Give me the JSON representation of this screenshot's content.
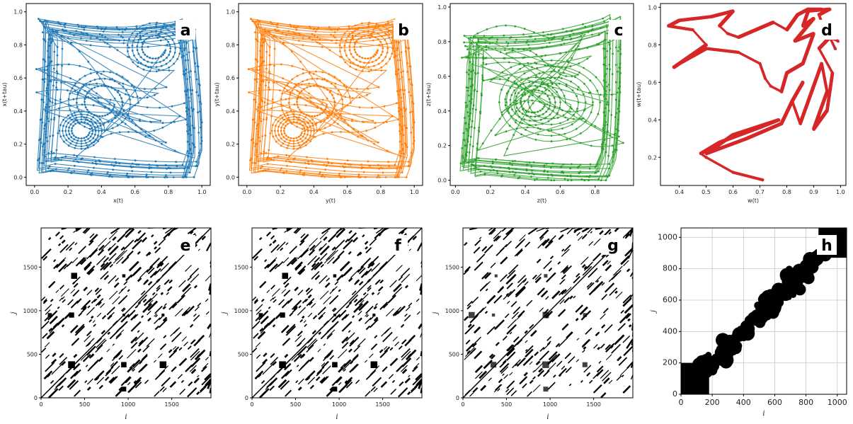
{
  "chart_data": [
    {
      "panel": "a",
      "type": "scatter",
      "color": "#1f77b4",
      "xlabel": "x(t)",
      "ylabel": "x(t+tau)",
      "xlim": [
        -0.05,
        1.05
      ],
      "ylim": [
        -0.05,
        1.05
      ],
      "xticks": [
        "0.0",
        "0.2",
        "0.4",
        "0.6",
        "0.8",
        "1.0"
      ],
      "yticks": [
        "0.0",
        "0.2",
        "0.4",
        "0.6",
        "0.8",
        "1.0"
      ]
    },
    {
      "panel": "b",
      "type": "scatter",
      "color": "#ff7f0e",
      "xlabel": "y(t)",
      "ylabel": "y(t+tau)",
      "xlim": [
        -0.05,
        1.05
      ],
      "ylim": [
        -0.05,
        1.05
      ],
      "xticks": [
        "0.0",
        "0.2",
        "0.4",
        "0.6",
        "0.8",
        "1.0"
      ],
      "yticks": [
        "0.0",
        "0.2",
        "0.4",
        "0.6",
        "0.8",
        "1.0"
      ]
    },
    {
      "panel": "c",
      "type": "scatter",
      "color": "#2ca02c",
      "xlabel": "z(t)",
      "ylabel": "z(t+tau)",
      "xlim": [
        -0.03,
        1.02
      ],
      "ylim": [
        -0.03,
        1.02
      ],
      "xticks": [
        "0.0",
        "0.2",
        "0.4",
        "0.6",
        "0.8"
      ],
      "yticks": [
        "0.0",
        "0.2",
        "0.4",
        "0.6",
        "0.8",
        "1.0"
      ]
    },
    {
      "panel": "d",
      "type": "scatter",
      "color": "#d62728",
      "xlabel": "w(t)",
      "ylabel": "w(t+tau)",
      "xlim": [
        0.33,
        1.02
      ],
      "ylim": [
        0.05,
        1.02
      ],
      "xticks": [
        "0.4",
        "0.5",
        "0.6",
        "0.7",
        "0.8",
        "0.9",
        "1.0"
      ],
      "yticks": [
        "0.2",
        "0.4",
        "0.6",
        "0.8",
        "1.0"
      ]
    },
    {
      "panel": "e",
      "type": "heatmap",
      "xlabel": "i",
      "ylabel": "j",
      "xlim": [
        0,
        1950
      ],
      "ylim": [
        0,
        1950
      ],
      "xticks": [
        "0",
        "500",
        "1000",
        "1500"
      ],
      "yticks": [
        "0",
        "500",
        "1000",
        "1500"
      ]
    },
    {
      "panel": "f",
      "type": "heatmap",
      "xlabel": "i",
      "ylabel": "j",
      "xlim": [
        0,
        1950
      ],
      "ylim": [
        0,
        1950
      ],
      "xticks": [
        "0",
        "500",
        "1000",
        "1500"
      ],
      "yticks": [
        "0",
        "500",
        "1000",
        "1500"
      ]
    },
    {
      "panel": "g",
      "type": "heatmap",
      "xlabel": "i",
      "ylabel": "j",
      "xlim": [
        0,
        1950
      ],
      "ylim": [
        0,
        1950
      ],
      "xticks": [
        "0",
        "500",
        "1000",
        "1500"
      ],
      "yticks": [
        "0",
        "500",
        "1000",
        "1500"
      ]
    },
    {
      "panel": "h",
      "type": "heatmap",
      "xlabel": "i",
      "ylabel": "j",
      "xlim": [
        0,
        1060
      ],
      "ylim": [
        0,
        1060
      ],
      "xticks": [
        "0",
        "200",
        "400",
        "600",
        "800",
        "1000"
      ],
      "yticks": [
        "0",
        "200",
        "400",
        "600",
        "800",
        "1000"
      ],
      "grid": true
    }
  ]
}
